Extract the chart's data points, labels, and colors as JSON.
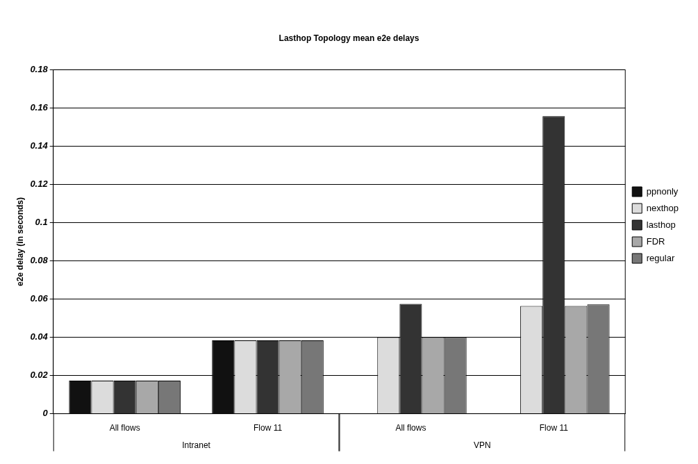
{
  "chart_data": {
    "type": "bar",
    "title": "Lasthop Topology mean e2e delays",
    "ylabel": "e2e delay (in seconds)",
    "categories": [
      "All flows",
      "Flow 11",
      "All flows",
      "Flow 11"
    ],
    "annotations": [
      "Intranet",
      "VPN"
    ],
    "series": [
      {
        "name": "ppnonly",
        "color": "#111111",
        "values": [
          0.0173,
          0.0384,
          null,
          null
        ]
      },
      {
        "name": "nexthop",
        "color": "#dcdcdc",
        "values": [
          0.0173,
          0.0384,
          0.04,
          0.0564
        ]
      },
      {
        "name": "lasthop",
        "color": "#333333",
        "values": [
          0.0173,
          0.0384,
          0.0575,
          0.1557
        ]
      },
      {
        "name": "FDR",
        "color": "#a8a8a8",
        "values": [
          0.0173,
          0.0384,
          0.04,
          0.0564
        ]
      },
      {
        "name": "regular",
        "color": "#777777",
        "values": [
          0.0173,
          0.0384,
          0.04,
          0.0572
        ]
      }
    ],
    "ylim": [
      0,
      0.18
    ],
    "yticks": [
      0,
      0.02,
      0.04,
      0.06,
      0.08,
      0.1,
      0.12,
      0.14,
      0.16,
      0.18
    ],
    "grid": "y",
    "legend": "right"
  }
}
